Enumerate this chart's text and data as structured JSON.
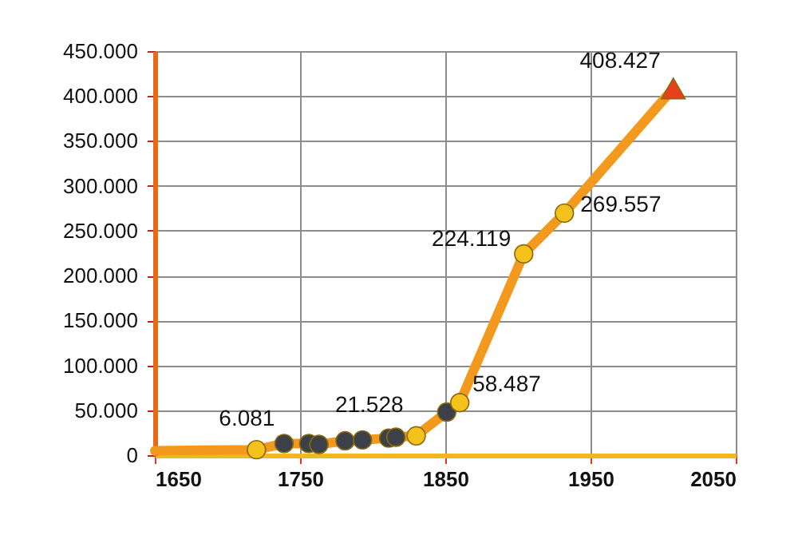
{
  "chart_data": {
    "type": "line",
    "xlim": [
      1650,
      2050
    ],
    "xticks": [
      1650,
      1750,
      1850,
      1950,
      2050
    ],
    "ylim": [
      0,
      450000
    ],
    "yticks": [
      0,
      {
        "value": 50000,
        "label": "50.000"
      },
      {
        "value": 100000,
        "label": "100.000"
      },
      {
        "value": 150000,
        "label": "150.000"
      },
      {
        "value": 200000,
        "label": "200.000"
      },
      {
        "value": 250000,
        "label": "250.000"
      },
      {
        "value": 300000,
        "label": "300.000"
      },
      {
        "value": 350000,
        "label": "350.000"
      },
      {
        "value": 400000,
        "label": "400.000"
      },
      {
        "value": 450000,
        "label": "450.000"
      }
    ],
    "grid": true,
    "line_style": "solid",
    "series": [
      {
        "type": "line",
        "marker": "none",
        "color": "#f39a1e",
        "x": [
          1650,
          1720,
          1739,
          1756,
          1763,
          1781,
          1793,
          1811,
          1816,
          1830,
          1851,
          1860,
          1904,
          1932,
          2007
        ],
        "values": [
          5000,
          6081,
          13000,
          13000,
          12000,
          16000,
          17000,
          19000,
          20000,
          21528,
          48000,
          58487,
          224119,
          269557,
          408427
        ]
      },
      {
        "type": "scatter",
        "marker": "circle",
        "x": [
          1720,
          1739,
          1756,
          1763,
          1781,
          1793,
          1811,
          1816,
          1830,
          1851,
          1860,
          1904,
          1932
        ],
        "values": [
          6081,
          13000,
          13000,
          12000,
          16000,
          17000,
          19000,
          20000,
          21528,
          48000,
          58487,
          224119,
          269557
        ],
        "colors": [
          "#f5c21b",
          "#3b4049",
          "#3b4049",
          "#3b4049",
          "#3b4049",
          "#3b4049",
          "#3b4049",
          "#3b4049",
          "#f5c21b",
          "#3b4049",
          "#f5c21b",
          "#f5c21b",
          "#f5c21b"
        ],
        "value_labels": [
          "6.081",
          null,
          null,
          null,
          null,
          null,
          null,
          null,
          "21.528",
          null,
          "58.487",
          "224.119",
          "269.557"
        ]
      },
      {
        "type": "scatter",
        "marker": "triangle",
        "color": "#e8401c",
        "x": [
          2007
        ],
        "values": [
          408427
        ],
        "value_labels": [
          "408.427"
        ]
      }
    ]
  }
}
